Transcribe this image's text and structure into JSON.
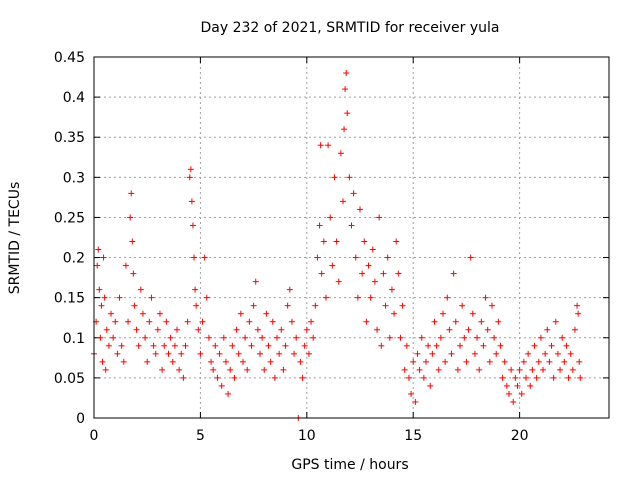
{
  "chart_data": {
    "type": "scatter",
    "title": "Day 232 of 2021, SRMTID for receiver yula",
    "xlabel": "GPS time / hours",
    "ylabel": "SRMTID / TECUs",
    "xlim": [
      0,
      24.2
    ],
    "ylim": [
      0,
      0.45
    ],
    "xticks": [
      0,
      5,
      10,
      15,
      20
    ],
    "xtick_labels": [
      "0",
      "5",
      "10",
      "15",
      "20"
    ],
    "yticks": [
      0,
      0.05,
      0.1,
      0.15,
      0.2,
      0.25,
      0.3,
      0.35,
      0.4,
      0.45
    ],
    "ytick_labels": [
      "0",
      "0.05",
      "0.1",
      "0.15",
      "0.2",
      "0.25",
      "0.3",
      "0.35",
      "0.4",
      "0.45"
    ],
    "grid": true,
    "marker": "+",
    "marker_color": "#ff0000",
    "series": [
      {
        "name": "SRMTID",
        "points": [
          [
            0.0,
            0.08
          ],
          [
            0.1,
            0.12
          ],
          [
            0.15,
            0.19
          ],
          [
            0.2,
            0.21
          ],
          [
            0.25,
            0.16
          ],
          [
            0.3,
            0.1
          ],
          [
            0.35,
            0.14
          ],
          [
            0.4,
            0.07
          ],
          [
            0.45,
            0.2
          ],
          [
            0.5,
            0.15
          ],
          [
            0.55,
            0.06
          ],
          [
            0.6,
            0.11
          ],
          [
            0.7,
            0.09
          ],
          [
            0.8,
            0.13
          ],
          [
            0.9,
            0.1
          ],
          [
            1.0,
            0.12
          ],
          [
            1.1,
            0.08
          ],
          [
            1.2,
            0.15
          ],
          [
            1.3,
            0.09
          ],
          [
            1.4,
            0.07
          ],
          [
            1.5,
            0.19
          ],
          [
            1.6,
            0.12
          ],
          [
            1.7,
            0.25
          ],
          [
            1.75,
            0.28
          ],
          [
            1.8,
            0.22
          ],
          [
            1.85,
            0.18
          ],
          [
            1.9,
            0.14
          ],
          [
            2.0,
            0.11
          ],
          [
            2.1,
            0.09
          ],
          [
            2.2,
            0.16
          ],
          [
            2.3,
            0.13
          ],
          [
            2.4,
            0.1
          ],
          [
            2.5,
            0.07
          ],
          [
            2.6,
            0.12
          ],
          [
            2.7,
            0.15
          ],
          [
            2.8,
            0.09
          ],
          [
            2.9,
            0.08
          ],
          [
            3.0,
            0.11
          ],
          [
            3.1,
            0.13
          ],
          [
            3.2,
            0.06
          ],
          [
            3.3,
            0.09
          ],
          [
            3.4,
            0.12
          ],
          [
            3.5,
            0.08
          ],
          [
            3.6,
            0.1
          ],
          [
            3.7,
            0.07
          ],
          [
            3.8,
            0.09
          ],
          [
            3.9,
            0.11
          ],
          [
            4.0,
            0.06
          ],
          [
            4.1,
            0.08
          ],
          [
            4.2,
            0.05
          ],
          [
            4.3,
            0.09
          ],
          [
            4.4,
            0.12
          ],
          [
            4.5,
            0.3
          ],
          [
            4.55,
            0.31
          ],
          [
            4.6,
            0.27
          ],
          [
            4.65,
            0.24
          ],
          [
            4.7,
            0.2
          ],
          [
            4.75,
            0.16
          ],
          [
            4.8,
            0.14
          ],
          [
            4.9,
            0.11
          ],
          [
            5.0,
            0.08
          ],
          [
            5.1,
            0.12
          ],
          [
            5.2,
            0.2
          ],
          [
            5.3,
            0.15
          ],
          [
            5.4,
            0.1
          ],
          [
            5.5,
            0.07
          ],
          [
            5.6,
            0.06
          ],
          [
            5.7,
            0.09
          ],
          [
            5.8,
            0.05
          ],
          [
            5.9,
            0.08
          ],
          [
            6.0,
            0.04
          ],
          [
            6.1,
            0.1
          ],
          [
            6.2,
            0.07
          ],
          [
            6.3,
            0.03
          ],
          [
            6.4,
            0.06
          ],
          [
            6.5,
            0.09
          ],
          [
            6.6,
            0.05
          ],
          [
            6.7,
            0.11
          ],
          [
            6.8,
            0.08
          ],
          [
            6.9,
            0.13
          ],
          [
            7.0,
            0.07
          ],
          [
            7.1,
            0.1
          ],
          [
            7.2,
            0.06
          ],
          [
            7.3,
            0.12
          ],
          [
            7.4,
            0.09
          ],
          [
            7.5,
            0.14
          ],
          [
            7.6,
            0.17
          ],
          [
            7.7,
            0.11
          ],
          [
            7.8,
            0.08
          ],
          [
            7.9,
            0.1
          ],
          [
            8.0,
            0.06
          ],
          [
            8.1,
            0.13
          ],
          [
            8.2,
            0.09
          ],
          [
            8.3,
            0.07
          ],
          [
            8.4,
            0.12
          ],
          [
            8.5,
            0.05
          ],
          [
            8.6,
            0.1
          ],
          [
            8.7,
            0.08
          ],
          [
            8.8,
            0.11
          ],
          [
            8.9,
            0.06
          ],
          [
            9.0,
            0.09
          ],
          [
            9.1,
            0.14
          ],
          [
            9.2,
            0.16
          ],
          [
            9.3,
            0.12
          ],
          [
            9.4,
            0.08
          ],
          [
            9.5,
            0.1
          ],
          [
            9.6,
            0.0
          ],
          [
            9.7,
            0.07
          ],
          [
            9.8,
            0.05
          ],
          [
            9.9,
            0.09
          ],
          [
            10.0,
            0.11
          ],
          [
            10.1,
            0.08
          ],
          [
            10.2,
            0.12
          ],
          [
            10.3,
            0.1
          ],
          [
            10.4,
            0.14
          ],
          [
            10.5,
            0.2
          ],
          [
            10.6,
            0.24
          ],
          [
            10.65,
            0.34
          ],
          [
            10.7,
            0.18
          ],
          [
            10.8,
            0.22
          ],
          [
            10.9,
            0.15
          ],
          [
            11.0,
            0.34
          ],
          [
            11.1,
            0.25
          ],
          [
            11.2,
            0.19
          ],
          [
            11.3,
            0.3
          ],
          [
            11.4,
            0.22
          ],
          [
            11.5,
            0.17
          ],
          [
            11.6,
            0.33
          ],
          [
            11.7,
            0.27
          ],
          [
            11.75,
            0.36
          ],
          [
            11.8,
            0.41
          ],
          [
            11.85,
            0.43
          ],
          [
            11.9,
            0.38
          ],
          [
            12.0,
            0.3
          ],
          [
            12.1,
            0.24
          ],
          [
            12.2,
            0.28
          ],
          [
            12.3,
            0.2
          ],
          [
            12.4,
            0.15
          ],
          [
            12.5,
            0.26
          ],
          [
            12.6,
            0.18
          ],
          [
            12.7,
            0.22
          ],
          [
            12.8,
            0.12
          ],
          [
            12.9,
            0.19
          ],
          [
            13.0,
            0.15
          ],
          [
            13.1,
            0.21
          ],
          [
            13.2,
            0.17
          ],
          [
            13.3,
            0.11
          ],
          [
            13.4,
            0.25
          ],
          [
            13.5,
            0.09
          ],
          [
            13.6,
            0.18
          ],
          [
            13.7,
            0.14
          ],
          [
            13.8,
            0.2
          ],
          [
            13.9,
            0.1
          ],
          [
            14.0,
            0.16
          ],
          [
            14.1,
            0.13
          ],
          [
            14.2,
            0.22
          ],
          [
            14.3,
            0.18
          ],
          [
            14.4,
            0.1
          ],
          [
            14.5,
            0.14
          ],
          [
            14.6,
            0.06
          ],
          [
            14.7,
            0.09
          ],
          [
            14.8,
            0.05
          ],
          [
            14.9,
            0.03
          ],
          [
            15.0,
            0.07
          ],
          [
            15.1,
            0.02
          ],
          [
            15.2,
            0.08
          ],
          [
            15.3,
            0.06
          ],
          [
            15.4,
            0.1
          ],
          [
            15.5,
            0.05
          ],
          [
            15.6,
            0.07
          ],
          [
            15.7,
            0.09
          ],
          [
            15.8,
            0.04
          ],
          [
            15.9,
            0.08
          ],
          [
            16.0,
            0.12
          ],
          [
            16.1,
            0.09
          ],
          [
            16.2,
            0.06
          ],
          [
            16.3,
            0.1
          ],
          [
            16.4,
            0.13
          ],
          [
            16.5,
            0.07
          ],
          [
            16.6,
            0.15
          ],
          [
            16.7,
            0.11
          ],
          [
            16.8,
            0.08
          ],
          [
            16.9,
            0.18
          ],
          [
            17.0,
            0.12
          ],
          [
            17.1,
            0.06
          ],
          [
            17.2,
            0.09
          ],
          [
            17.3,
            0.14
          ],
          [
            17.4,
            0.1
          ],
          [
            17.5,
            0.07
          ],
          [
            17.6,
            0.11
          ],
          [
            17.7,
            0.2
          ],
          [
            17.8,
            0.13
          ],
          [
            17.9,
            0.08
          ],
          [
            18.0,
            0.1
          ],
          [
            18.1,
            0.06
          ],
          [
            18.2,
            0.12
          ],
          [
            18.3,
            0.09
          ],
          [
            18.4,
            0.15
          ],
          [
            18.5,
            0.11
          ],
          [
            18.6,
            0.07
          ],
          [
            18.7,
            0.14
          ],
          [
            18.8,
            0.1
          ],
          [
            18.9,
            0.08
          ],
          [
            19.0,
            0.12
          ],
          [
            19.1,
            0.09
          ],
          [
            19.2,
            0.05
          ],
          [
            19.3,
            0.07
          ],
          [
            19.4,
            0.04
          ],
          [
            19.5,
            0.03
          ],
          [
            19.6,
            0.06
          ],
          [
            19.7,
            0.02
          ],
          [
            19.8,
            0.05
          ],
          [
            19.9,
            0.04
          ],
          [
            20.0,
            0.06
          ],
          [
            20.1,
            0.03
          ],
          [
            20.2,
            0.07
          ],
          [
            20.3,
            0.05
          ],
          [
            20.4,
            0.08
          ],
          [
            20.5,
            0.04
          ],
          [
            20.6,
            0.06
          ],
          [
            20.7,
            0.09
          ],
          [
            20.8,
            0.05
          ],
          [
            20.9,
            0.07
          ],
          [
            21.0,
            0.1
          ],
          [
            21.1,
            0.06
          ],
          [
            21.2,
            0.08
          ],
          [
            21.3,
            0.11
          ],
          [
            21.4,
            0.07
          ],
          [
            21.5,
            0.09
          ],
          [
            21.6,
            0.05
          ],
          [
            21.7,
            0.12
          ],
          [
            21.8,
            0.08
          ],
          [
            21.9,
            0.06
          ],
          [
            22.0,
            0.1
          ],
          [
            22.1,
            0.07
          ],
          [
            22.2,
            0.09
          ],
          [
            22.3,
            0.05
          ],
          [
            22.4,
            0.08
          ],
          [
            22.5,
            0.06
          ],
          [
            22.6,
            0.11
          ],
          [
            22.7,
            0.14
          ],
          [
            22.75,
            0.13
          ],
          [
            22.8,
            0.07
          ],
          [
            22.85,
            0.05
          ]
        ]
      }
    ]
  }
}
